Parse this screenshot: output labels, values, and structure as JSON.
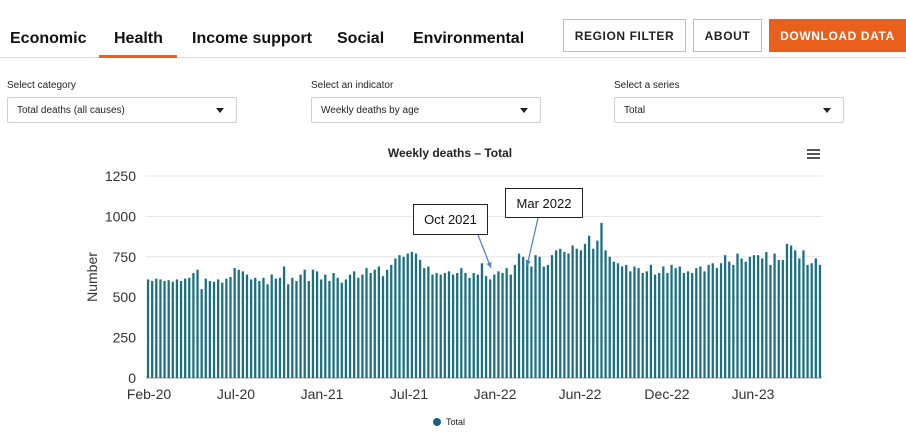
{
  "nav": {
    "tabs": [
      {
        "label": "Economic"
      },
      {
        "label": "Health",
        "active": true
      },
      {
        "label": "Income support"
      },
      {
        "label": "Social"
      },
      {
        "label": "Environmental"
      }
    ],
    "region_filter": "REGION FILTER",
    "about": "ABOUT",
    "download": "DOWNLOAD DATA",
    "accent_color": "#e8601c"
  },
  "selectors": {
    "category": {
      "label": "Select category",
      "value": "Total deaths (all causes)"
    },
    "indicator": {
      "label": "Select an indicator",
      "value": "Weekly deaths by age"
    },
    "series": {
      "label": "Select a series",
      "value": "Total"
    }
  },
  "chart_menu_icon": "hamburger-menu-icon",
  "chart_data": {
    "type": "bar",
    "title": "Weekly deaths – Total",
    "xlabel": "",
    "ylabel": "Number",
    "ylim": [
      0,
      1250
    ],
    "yticks": [
      0,
      250,
      500,
      750,
      1000,
      1250
    ],
    "grid": true,
    "legend_position": "bottom",
    "x_tick_labels": [
      "Feb-20",
      "Jul-20",
      "Jan-21",
      "Jul-21",
      "Jan-22",
      "Jun-22",
      "Dec-22",
      "Jun-23"
    ],
    "series": [
      {
        "name": "Total",
        "color": "#1a6f80",
        "values": [
          610,
          600,
          615,
          610,
          600,
          605,
          595,
          610,
          600,
          615,
          620,
          650,
          670,
          550,
          615,
          600,
          595,
          610,
          590,
          615,
          625,
          680,
          670,
          660,
          640,
          610,
          620,
          600,
          620,
          580,
          640,
          615,
          620,
          690,
          580,
          620,
          600,
          640,
          670,
          600,
          670,
          660,
          610,
          640,
          600,
          650,
          620,
          590,
          610,
          640,
          660,
          620,
          640,
          680,
          650,
          670,
          690,
          630,
          670,
          700,
          740,
          760,
          750,
          770,
          780,
          770,
          730,
          680,
          690,
          640,
          650,
          640,
          650,
          660,
          640,
          650,
          680,
          650,
          620,
          650,
          640,
          710,
          630,
          610,
          640,
          660,
          650,
          680,
          640,
          700,
          770,
          750,
          730,
          690,
          760,
          750,
          690,
          700,
          760,
          790,
          800,
          780,
          770,
          820,
          800,
          790,
          830,
          880,
          800,
          850,
          960,
          790,
          750,
          720,
          710,
          690,
          700,
          660,
          690,
          680,
          650,
          660,
          700,
          640,
          650,
          690,
          650,
          700,
          680,
          690,
          650,
          660,
          650,
          680,
          690,
          660,
          700,
          710,
          680,
          710,
          760,
          720,
          700,
          770,
          740,
          720,
          750,
          760,
          760,
          740,
          780,
          700,
          770,
          730,
          730,
          830,
          820,
          790,
          740,
          790,
          700,
          710,
          740,
          700
        ]
      }
    ],
    "annotations": [
      {
        "text": "Oct 2021"
      },
      {
        "text": "Mar 2022"
      }
    ]
  }
}
